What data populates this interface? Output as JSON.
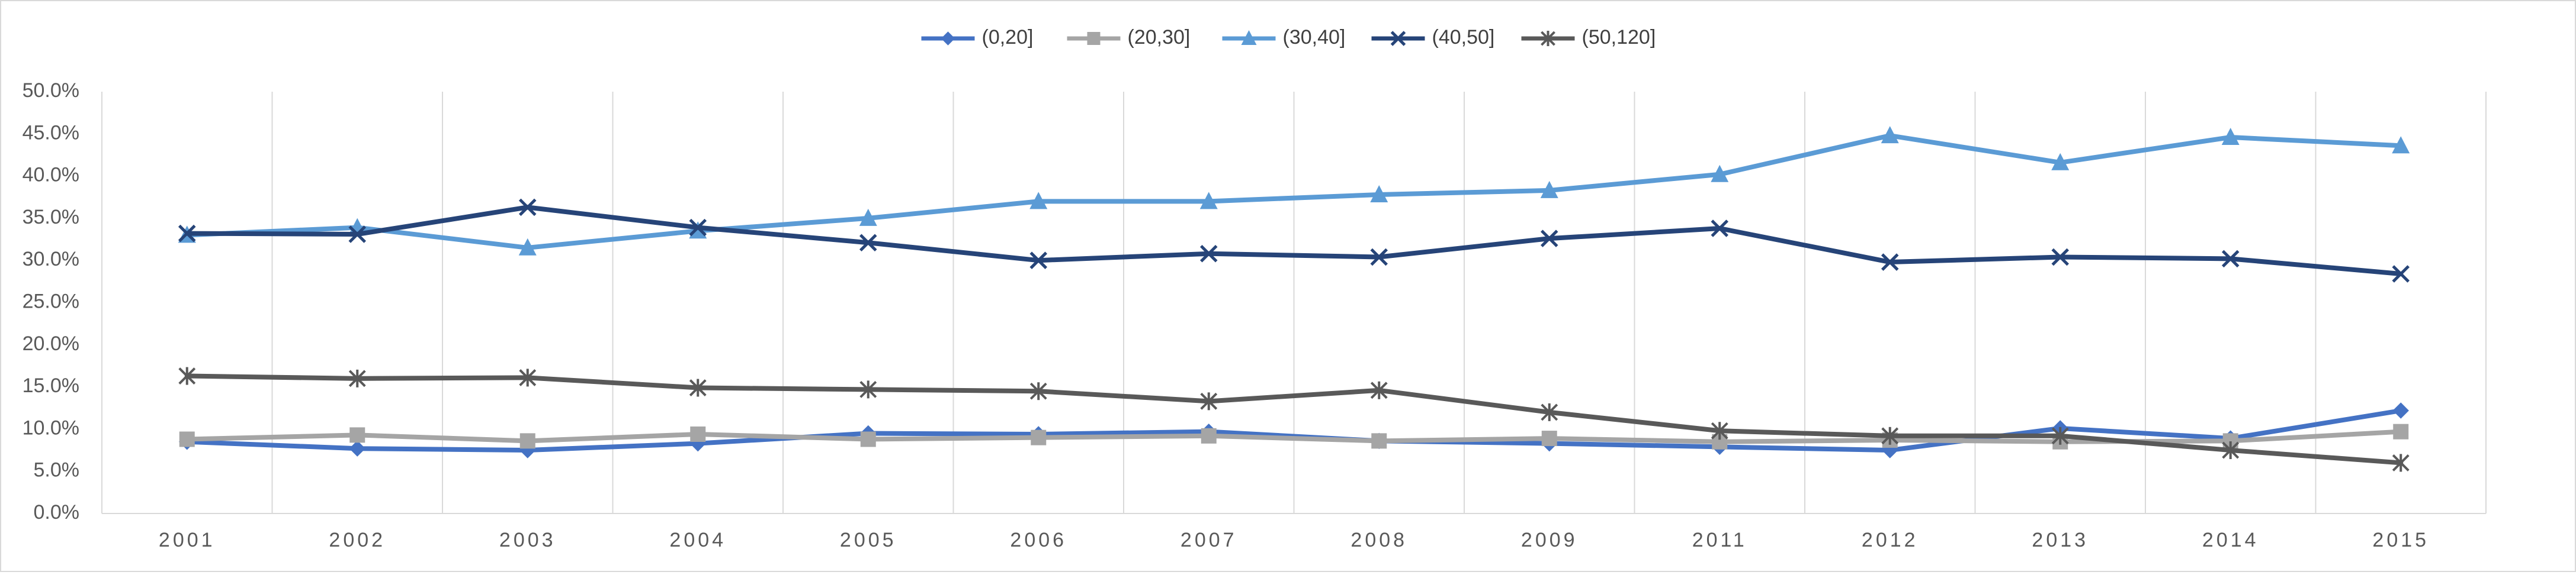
{
  "chart_data": {
    "type": "line",
    "categories": [
      "2001",
      "2002",
      "2003",
      "2004",
      "2005",
      "2006",
      "2007",
      "2008",
      "2009",
      "2011",
      "2012",
      "2013",
      "2014",
      "2015"
    ],
    "y_ticks": [
      "0.0%",
      "5.0%",
      "10.0%",
      "15.0%",
      "20.0%",
      "25.0%",
      "30.0%",
      "35.0%",
      "40.0%",
      "45.0%",
      "50.0%"
    ],
    "ylim": [
      0,
      50
    ],
    "grid": {
      "vertical": true,
      "horizontal": false
    },
    "legend_position": "top-center",
    "series": [
      {
        "name": "(0,20]",
        "color": "#4472C4",
        "marker": "diamond",
        "values": [
          8.5,
          7.7,
          7.5,
          8.3,
          9.5,
          9.4,
          9.7,
          8.6,
          8.3,
          7.9,
          7.5,
          10.1,
          8.9,
          12.2
        ]
      },
      {
        "name": "(20,30]",
        "color": "#A5A5A5",
        "marker": "square",
        "values": [
          8.8,
          9.3,
          8.6,
          9.4,
          8.8,
          9.0,
          9.2,
          8.6,
          8.9,
          8.5,
          8.7,
          8.5,
          8.6,
          9.7
        ]
      },
      {
        "name": "(30,40]",
        "color": "#5B9BD5",
        "marker": "triangle",
        "values": [
          33.0,
          33.9,
          31.5,
          33.5,
          35.0,
          37.0,
          37.0,
          37.8,
          38.3,
          40.2,
          44.8,
          41.6,
          44.6,
          43.6
        ]
      },
      {
        "name": "(40,50]",
        "color": "#264478",
        "marker": "x",
        "values": [
          33.2,
          33.1,
          36.3,
          33.9,
          32.1,
          30.0,
          30.8,
          30.4,
          32.6,
          33.8,
          29.8,
          30.4,
          30.2,
          28.4
        ]
      },
      {
        "name": "(50,120]",
        "color": "#595959",
        "marker": "star",
        "values": [
          16.3,
          16.0,
          16.1,
          14.9,
          14.7,
          14.5,
          13.3,
          14.6,
          12.0,
          9.8,
          9.2,
          9.2,
          7.5,
          6.0
        ]
      }
    ]
  }
}
